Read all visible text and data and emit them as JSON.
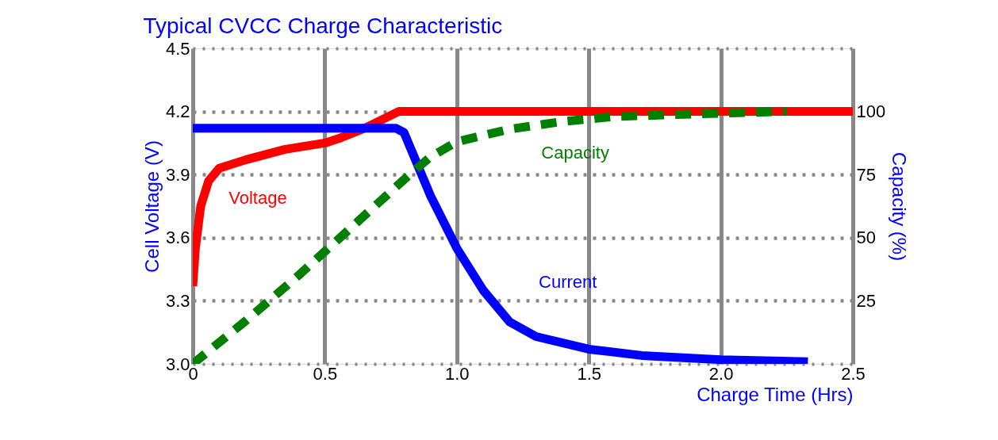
{
  "chart_data": {
    "type": "line",
    "title": "Typical CVCC Charge Characteristic",
    "xlabel": "Charge Time (Hrs)",
    "ylabel": "Cell Voltage (V)",
    "y2label": "Capacity (%)",
    "xlim": [
      0,
      2.5
    ],
    "xticks": [
      0,
      0.5,
      {
        "value": 1,
        "label": "1.0"
      },
      1.5,
      {
        "value": 2,
        "label": "2.0"
      },
      2.5
    ],
    "ylim": [
      3.0,
      4.5
    ],
    "yticks": [
      {
        "value": 3,
        "label": "3.0"
      },
      3.3,
      3.6,
      3.9,
      4.2,
      4.5
    ],
    "y2lim": [
      0,
      125
    ],
    "y2ticks": [
      25,
      50,
      75,
      100
    ],
    "grid": true,
    "series": [
      {
        "name": "Voltage",
        "color": "#ff0000",
        "line_style": "solid",
        "x": [
          0,
          0.01,
          0.03,
          0.06,
          0.1,
          0.2,
          0.35,
          0.5,
          0.55,
          0.65,
          0.78,
          2.5
        ],
        "values": [
          3.37,
          3.55,
          3.75,
          3.87,
          3.93,
          3.97,
          4.02,
          4.05,
          4.07,
          4.12,
          4.2,
          4.2
        ]
      },
      {
        "name": "Current",
        "color": "#0000ff",
        "line_style": "solid",
        "x": [
          0,
          0.77,
          0.8,
          0.85,
          0.9,
          1.0,
          1.1,
          1.2,
          1.3,
          1.5,
          1.7,
          2.0,
          2.33
        ],
        "values": [
          4.12,
          4.12,
          4.1,
          3.95,
          3.8,
          3.55,
          3.35,
          3.2,
          3.13,
          3.07,
          3.04,
          3.02,
          3.01
        ]
      },
      {
        "name": "Capacity",
        "color": "#007f00",
        "line_style": "dashed",
        "axis": "y2",
        "x": [
          0,
          0.2,
          0.4,
          0.6,
          0.8,
          0.9,
          1.0,
          1.2,
          1.4,
          1.6,
          1.9,
          2.25
        ],
        "values": [
          0,
          17,
          35,
          54,
          73,
          82,
          88,
          93,
          96,
          98,
          99,
          100
        ]
      }
    ]
  }
}
